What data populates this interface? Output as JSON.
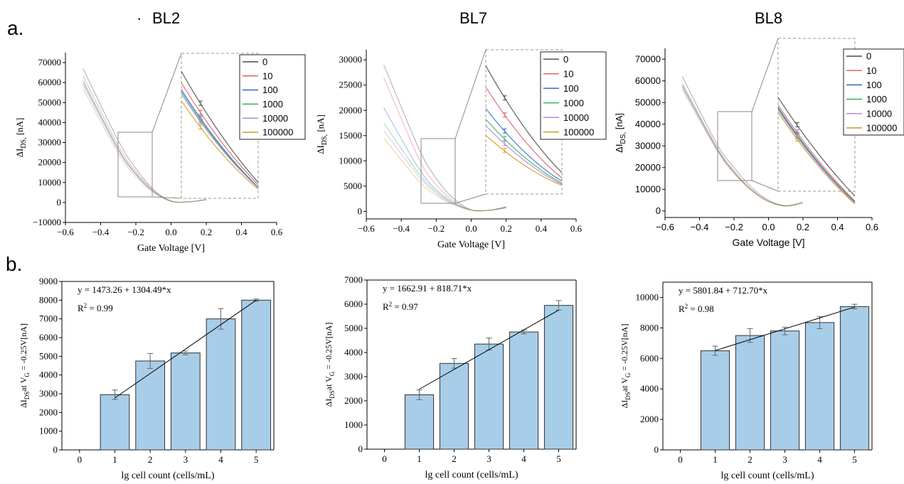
{
  "figure": {
    "panel_labels": [
      "a.",
      "b."
    ],
    "titles": [
      "BL2",
      "BL7",
      "BL8"
    ],
    "title_bullet": "·"
  },
  "chart_data": [
    {
      "id": "a-BL2",
      "type": "line",
      "title": "BL2",
      "xlabel": "Gate Voltage [V]",
      "ylabel_main": "ΔI",
      "ylabel_sub": "DS",
      "ylabel_sub_tail": ",",
      "ylabel_tail": " [nA]",
      "xlim": [
        -0.6,
        0.6
      ],
      "ylim": [
        -10000,
        75000
      ],
      "xticks": [
        -0.6,
        -0.4,
        -0.2,
        0.0,
        0.2,
        0.4,
        0.6
      ],
      "yticks": [
        -10000,
        0,
        10000,
        20000,
        30000,
        40000,
        50000,
        60000,
        70000
      ],
      "xtick_labels": [
        "−0.6",
        "−0.4",
        "−0.2",
        "0.0",
        "0.2",
        "0.4",
        "0.6"
      ],
      "ytick_labels": [
        "−10000",
        "0",
        "10000",
        "20000",
        "30000",
        "40000",
        "50000",
        "60000",
        "70000"
      ],
      "legend_position": "top-right",
      "series": [
        {
          "name": "0",
          "color": "#555555",
          "x": [
            -0.5,
            -0.3,
            -0.2,
            -0.1,
            0.0,
            0.1,
            0.2
          ],
          "y": [
            67000,
            31000,
            17000,
            6500,
            800,
            300,
            1500
          ]
        },
        {
          "name": "10",
          "color": "#e06666",
          "x": [
            -0.5,
            -0.3,
            -0.2,
            -0.1,
            0.0,
            0.1,
            0.2
          ],
          "y": [
            63500,
            28500,
            15500,
            6000,
            700,
            300,
            1400
          ]
        },
        {
          "name": "100",
          "color": "#3d6fc7",
          "x": [
            -0.5,
            -0.3,
            -0.2,
            -0.1,
            0.0,
            0.1,
            0.2
          ],
          "y": [
            61000,
            27000,
            14500,
            5500,
            600,
            300,
            1400
          ]
        },
        {
          "name": "1000",
          "color": "#43b36b",
          "x": [
            -0.5,
            -0.3,
            -0.2,
            -0.1,
            0.0,
            0.1,
            0.2
          ],
          "y": [
            60000,
            26500,
            14200,
            5400,
            600,
            300,
            1400
          ]
        },
        {
          "name": "10000",
          "color": "#b48ad8",
          "x": [
            -0.5,
            -0.3,
            -0.2,
            -0.1,
            0.0,
            0.1,
            0.2
          ],
          "y": [
            59000,
            26000,
            14000,
            5300,
            600,
            300,
            1400
          ]
        },
        {
          "name": "100000",
          "color": "#d4a02a",
          "x": [
            -0.5,
            -0.3,
            -0.2,
            -0.1,
            0.0,
            0.1,
            0.2
          ],
          "y": [
            57000,
            24500,
            13000,
            5000,
            600,
            300,
            1300
          ]
        }
      ]
    },
    {
      "id": "a-BL7",
      "type": "line",
      "title": "BL7",
      "xlabel": "Gate Voltage [V]",
      "ylabel_main": "ΔI",
      "ylabel_sub": "DS",
      "ylabel_sub_tail": ",",
      "ylabel_tail": " [nA]",
      "xlim": [
        -0.6,
        0.6
      ],
      "ylim": [
        -1500,
        32000
      ],
      "xticks": [
        -0.6,
        -0.4,
        -0.2,
        0.0,
        0.2,
        0.4,
        0.6
      ],
      "yticks": [
        0,
        5000,
        10000,
        15000,
        20000,
        25000,
        30000
      ],
      "xtick_labels": [
        "−0.6",
        "−0.4",
        "−0.2",
        "0.0",
        "0.2",
        "0.4",
        "0.6"
      ],
      "ytick_labels": [
        "0",
        "5000",
        "10000",
        "15000",
        "20000",
        "25000",
        "30000"
      ],
      "legend_position": "top-right",
      "series": [
        {
          "name": "0",
          "color": "#555555",
          "x": [
            -0.5,
            -0.3,
            -0.2,
            -0.1,
            0.0,
            0.1,
            0.2
          ],
          "y": [
            29000,
            12500,
            6500,
            2500,
            300,
            200,
            900
          ]
        },
        {
          "name": "10",
          "color": "#e06666",
          "x": [
            -0.5,
            -0.3,
            -0.2,
            -0.1,
            0.0,
            0.1,
            0.2
          ],
          "y": [
            26500,
            10500,
            5300,
            2000,
            250,
            200,
            800
          ]
        },
        {
          "name": "100",
          "color": "#3d6fc7",
          "x": [
            -0.5,
            -0.3,
            -0.2,
            -0.1,
            0.0,
            0.1,
            0.2
          ],
          "y": [
            20500,
            8500,
            4300,
            1700,
            250,
            200,
            800
          ]
        },
        {
          "name": "1000",
          "color": "#43b36b",
          "x": [
            -0.5,
            -0.3,
            -0.2,
            -0.1,
            0.0,
            0.1,
            0.2
          ],
          "y": [
            17500,
            7500,
            3900,
            1500,
            250,
            200,
            700
          ]
        },
        {
          "name": "10000",
          "color": "#b48ad8",
          "x": [
            -0.5,
            -0.3,
            -0.2,
            -0.1,
            0.0,
            0.1,
            0.2
          ],
          "y": [
            16000,
            6900,
            3600,
            1400,
            250,
            200,
            700
          ]
        },
        {
          "name": "100000",
          "color": "#d4a02a",
          "x": [
            -0.5,
            -0.3,
            -0.2,
            -0.1,
            0.0,
            0.1,
            0.2
          ],
          "y": [
            14500,
            6000,
            3200,
            1300,
            250,
            200,
            700
          ]
        }
      ]
    },
    {
      "id": "a-BL8",
      "type": "line",
      "title": "BL8",
      "xlabel": "Gate Voltage [V]",
      "ylabel_main": "ΔI",
      "ylabel_sub": "DS",
      "ylabel_sub_tail": ",",
      "ylabel_tail": " [nA]",
      "xlim": [
        -0.6,
        0.6
      ],
      "ylim": [
        -3000,
        75000
      ],
      "xticks": [
        -0.6,
        -0.4,
        -0.2,
        0.0,
        0.2,
        0.4,
        0.6
      ],
      "yticks": [
        0,
        10000,
        20000,
        30000,
        40000,
        50000,
        60000,
        70000
      ],
      "xtick_labels": [
        "−0.6",
        "−0.4",
        "−0.2",
        "0.0",
        "0.2",
        "0.4",
        "0.6"
      ],
      "ytick_labels": [
        "0",
        "10000",
        "20000",
        "30000",
        "40000",
        "50000",
        "60000",
        "70000"
      ],
      "legend_position": "top-right",
      "series": [
        {
          "name": "0",
          "color": "#555555",
          "x": [
            -0.5,
            -0.3,
            -0.2,
            -0.1,
            0.0,
            0.1,
            0.2
          ],
          "y": [
            62000,
            31000,
            20000,
            11000,
            5000,
            2500,
            4000
          ]
        },
        {
          "name": "10",
          "color": "#e06666",
          "x": [
            -0.5,
            -0.3,
            -0.2,
            -0.1,
            0.0,
            0.1,
            0.2
          ],
          "y": [
            59000,
            29500,
            18500,
            10000,
            4500,
            2300,
            3800
          ]
        },
        {
          "name": "100",
          "color": "#3d6fc7",
          "x": [
            -0.5,
            -0.3,
            -0.2,
            -0.1,
            0.0,
            0.1,
            0.2
          ],
          "y": [
            58000,
            29000,
            18000,
            9800,
            4400,
            2300,
            3800
          ]
        },
        {
          "name": "1000",
          "color": "#43b36b",
          "x": [
            -0.5,
            -0.3,
            -0.2,
            -0.1,
            0.0,
            0.1,
            0.2
          ],
          "y": [
            57500,
            28700,
            17800,
            9700,
            4400,
            2300,
            3800
          ]
        },
        {
          "name": "10000",
          "color": "#b48ad8",
          "x": [
            -0.5,
            -0.3,
            -0.2,
            -0.1,
            0.0,
            0.1,
            0.2
          ],
          "y": [
            57000,
            28500,
            17600,
            9600,
            4300,
            2300,
            3800
          ]
        },
        {
          "name": "100000",
          "color": "#d4a02a",
          "x": [
            -0.5,
            -0.3,
            -0.2,
            -0.1,
            0.0,
            0.1,
            0.2
          ],
          "y": [
            56000,
            28000,
            17200,
            9400,
            4300,
            2300,
            3800
          ]
        }
      ]
    },
    {
      "id": "b-BL2",
      "type": "bar",
      "xlabel": "lg cell count (cells/mL)",
      "ylabel_main": "ΔI",
      "ylabel_sub": "DS",
      "ylabel_mid": "at V",
      "ylabel_sub2": "G",
      "ylabel_tail": " = -0.25V[nA]",
      "xlim": [
        -0.5,
        5.5
      ],
      "ylim": [
        0,
        9000
      ],
      "xticks": [
        0,
        1,
        2,
        3,
        4,
        5
      ],
      "xtick_labels": [
        "0",
        "1",
        "2",
        "3",
        "4",
        "5"
      ],
      "yticks": [
        0,
        1000,
        2000,
        3000,
        4000,
        5000,
        6000,
        7000,
        8000,
        9000
      ],
      "ytick_labels": [
        "0",
        "1000",
        "2000",
        "3000",
        "4000",
        "5000",
        "6000",
        "7000",
        "8000",
        "9000"
      ],
      "categories": [
        1,
        2,
        3,
        4,
        5
      ],
      "values": [
        2950,
        4750,
        5180,
        7000,
        8000
      ],
      "errors": [
        250,
        400,
        100,
        550,
        60
      ],
      "fit": {
        "intercept": 1473.26,
        "slope": 1304.49,
        "x_range": [
          1,
          5
        ]
      },
      "equation": "y = 1473.26 + 1304.49*x",
      "r2_label": "R",
      "r2_sup": "2",
      "r2_value": " = 0.99",
      "bar_color": "#a8cde8"
    },
    {
      "id": "b-BL7",
      "type": "bar",
      "xlabel": "lg cell count (cells/mL)",
      "ylabel_main": "ΔI",
      "ylabel_sub": "DS",
      "ylabel_mid": "at V",
      "ylabel_sub2": "G",
      "ylabel_tail": " = -0.25V[nA]",
      "xlim": [
        -0.5,
        5.5
      ],
      "ylim": [
        0,
        7000
      ],
      "xticks": [
        0,
        1,
        2,
        3,
        4,
        5
      ],
      "xtick_labels": [
        "0",
        "1",
        "2",
        "3",
        "4",
        "5"
      ],
      "yticks": [
        0,
        1000,
        2000,
        3000,
        4000,
        5000,
        6000,
        7000
      ],
      "ytick_labels": [
        "0",
        "1000",
        "2000",
        "3000",
        "4000",
        "5000",
        "6000",
        "7000"
      ],
      "categories": [
        1,
        2,
        3,
        4,
        5
      ],
      "values": [
        2250,
        3550,
        4350,
        4850,
        5950
      ],
      "errors": [
        200,
        200,
        250,
        80,
        200
      ],
      "fit": {
        "intercept": 1662.91,
        "slope": 818.71,
        "x_range": [
          1,
          5
        ]
      },
      "equation": "y = 1662.91 + 818.71*x",
      "r2_label": "R",
      "r2_sup": "2",
      "r2_value": " = 0.97",
      "bar_color": "#a8cde8"
    },
    {
      "id": "b-BL8",
      "type": "bar",
      "xlabel": "lg cell count (cells/mL)",
      "ylabel_main": "ΔI",
      "ylabel_sub": "DS",
      "ylabel_mid": "at V",
      "ylabel_sub2": "G",
      "ylabel_tail": " = -0.25V[nA]",
      "xlim": [
        -0.5,
        5.5
      ],
      "ylim": [
        0,
        11000
      ],
      "xticks": [
        0,
        1,
        2,
        3,
        4,
        5
      ],
      "xtick_labels": [
        "0",
        "1",
        "2",
        "3",
        "4",
        "5"
      ],
      "yticks": [
        0,
        2000,
        4000,
        6000,
        8000,
        10000
      ],
      "ytick_labels": [
        "0",
        "2000",
        "4000",
        "6000",
        "8000",
        "10000"
      ],
      "categories": [
        1,
        2,
        3,
        4,
        5
      ],
      "values": [
        6500,
        7500,
        7800,
        8350,
        9400
      ],
      "errors": [
        300,
        450,
        250,
        400,
        150
      ],
      "fit": {
        "intercept": 5801.84,
        "slope": 712.7,
        "x_range": [
          1,
          5
        ]
      },
      "equation": "y = 5801.84 + 712.70*x",
      "r2_label": "R",
      "r2_sup": "2",
      "r2_value": " = 0.98",
      "bar_color": "#a8cde8"
    }
  ]
}
